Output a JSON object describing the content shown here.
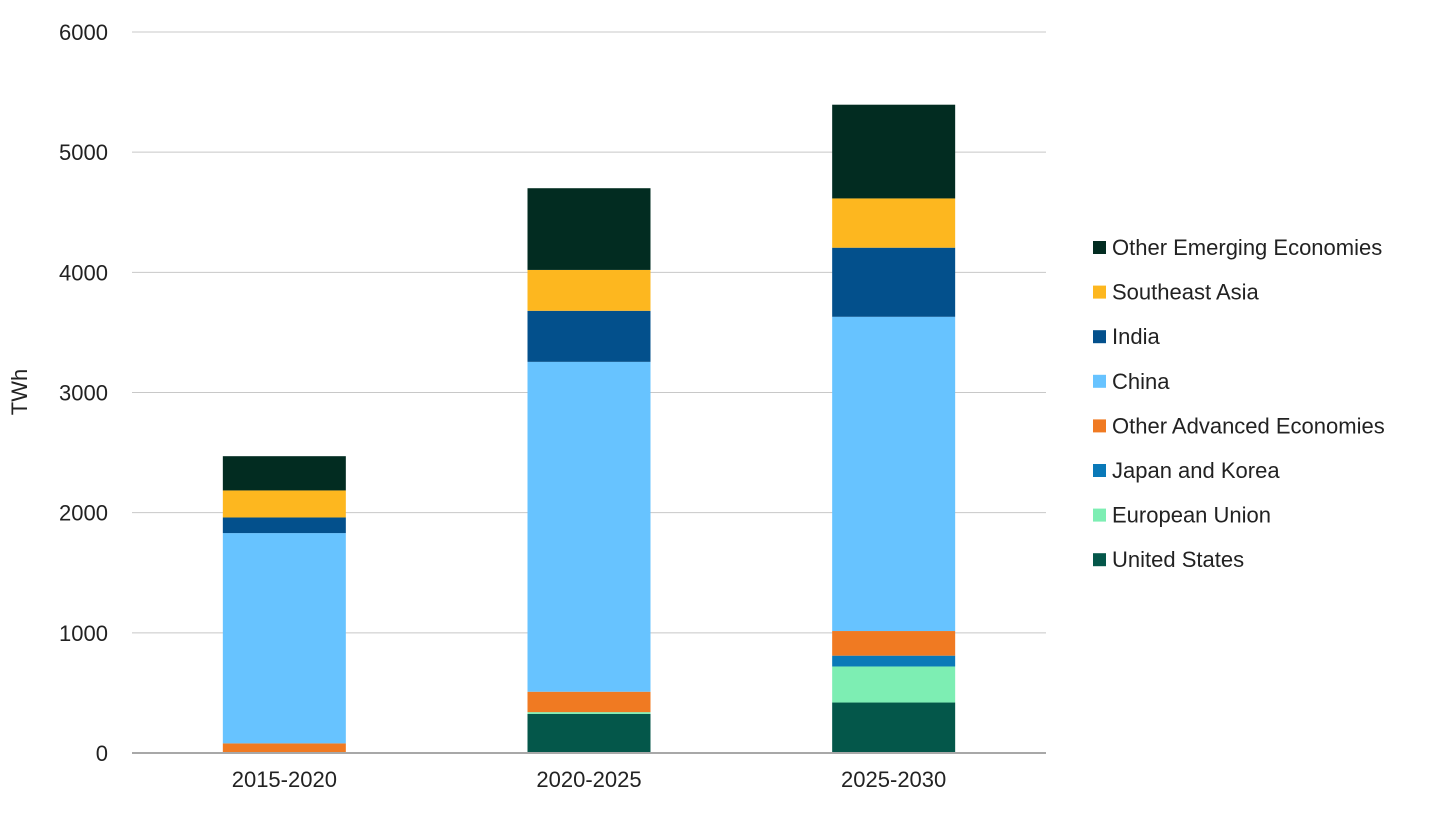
{
  "chart_data": {
    "type": "bar",
    "stacked": true,
    "title": "",
    "xlabel": "",
    "ylabel": "TWh",
    "ylim": [
      0,
      6000
    ],
    "yticks": [
      0,
      1000,
      2000,
      3000,
      4000,
      5000,
      6000
    ],
    "grid": true,
    "legend_position": "right",
    "categories": [
      "2015-2020",
      "2020-2025",
      "2025-2030"
    ],
    "series": [
      {
        "name": "United States",
        "color": "#04574a",
        "values": [
          0,
          325,
          420
        ]
      },
      {
        "name": "European Union",
        "color": "#7deeb3",
        "values": [
          0,
          15,
          300
        ]
      },
      {
        "name": "Japan and Korea",
        "color": "#0a79b8",
        "values": [
          0,
          0,
          90
        ]
      },
      {
        "name": "Other Advanced Economies",
        "color": "#f07a22",
        "values": [
          80,
          170,
          205
        ]
      },
      {
        "name": "China",
        "color": "#67c3ff",
        "values": [
          1750,
          2745,
          2615
        ]
      },
      {
        "name": "India",
        "color": "#03508c",
        "values": [
          130,
          425,
          575
        ]
      },
      {
        "name": "Southeast Asia",
        "color": "#fdb71f",
        "values": [
          225,
          340,
          410
        ]
      },
      {
        "name": "Other Emerging Economies",
        "color": "#022c21",
        "values": [
          285,
          680,
          780
        ]
      }
    ]
  }
}
